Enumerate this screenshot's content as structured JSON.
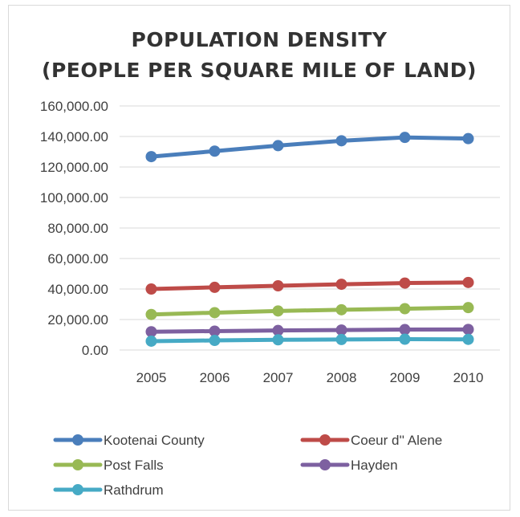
{
  "chart_data": {
    "type": "line",
    "title_lines": [
      "POPULATION DENSITY",
      "(PEOPLE PER SQUARE MILE OF LAND)"
    ],
    "xlabel": "",
    "ylabel": "",
    "x": [
      "2005",
      "2006",
      "2007",
      "2008",
      "2009",
      "2010"
    ],
    "ylim": [
      0,
      160000
    ],
    "y_ticks": [
      0,
      20000,
      40000,
      60000,
      80000,
      100000,
      120000,
      140000,
      160000
    ],
    "y_tick_labels": [
      "0.00",
      "20,000.00",
      "40,000.00",
      "60,000.00",
      "80,000.00",
      "100,000.00",
      "120,000.00",
      "140,000.00",
      "160,000.00"
    ],
    "grid": true,
    "legend_position": "bottom",
    "series": [
      {
        "name": "Kootenai County",
        "color": "#4a7ebb",
        "values": [
          126800,
          130400,
          134000,
          137200,
          139400,
          138600
        ]
      },
      {
        "name": "Coeur d'' Alene",
        "color": "#be4b48",
        "values": [
          40000,
          41100,
          42100,
          43100,
          43900,
          44300
        ]
      },
      {
        "name": "Post Falls",
        "color": "#98b954",
        "values": [
          23300,
          24500,
          25600,
          26400,
          27100,
          27800
        ]
      },
      {
        "name": "Hayden",
        "color": "#7d60a0",
        "values": [
          12000,
          12400,
          12800,
          13100,
          13400,
          13500
        ]
      },
      {
        "name": "Rathdrum",
        "color": "#46aac5",
        "values": [
          5800,
          6300,
          6700,
          6900,
          7100,
          7000
        ]
      }
    ]
  }
}
